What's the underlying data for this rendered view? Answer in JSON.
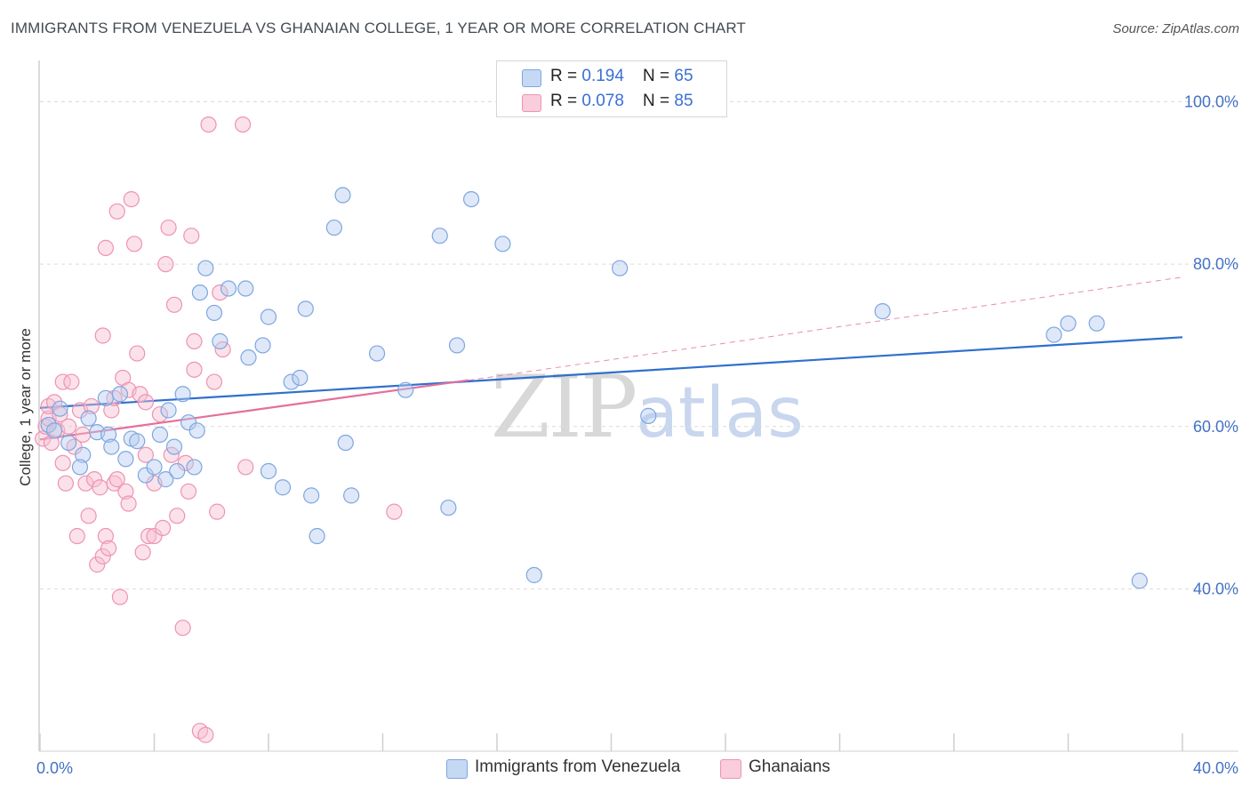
{
  "header": {
    "title": "IMMIGRANTS FROM VENEZUELA VS GHANAIAN COLLEGE, 1 YEAR OR MORE CORRELATION CHART",
    "source": "Source: ZipAtlas.com"
  },
  "legend": {
    "blue": {
      "r_label": "R = ",
      "r_value": "0.194",
      "n_label": "N = ",
      "n_value": "65"
    },
    "pink": {
      "r_label": "R = ",
      "r_value": "0.078",
      "n_label": "N = ",
      "n_value": "85"
    }
  },
  "bottom_legend": {
    "blue_label": "Immigrants from Venezuela",
    "pink_label": "Ghanaians"
  },
  "watermark": {
    "zip": "ZIP",
    "atlas": "atlas"
  },
  "colors": {
    "blue_fill": "#b5cdf0",
    "blue_stroke": "#7ea6e0",
    "blue_line": "#2f6fce",
    "pink_fill": "#f6bfd0",
    "pink_stroke": "#ee93b1",
    "pink_line": "#e46f9a",
    "grid": "#dcdcdc",
    "accent": "#4472c4"
  },
  "chart_data": {
    "type": "scatter",
    "title": "IMMIGRANTS FROM VENEZUELA VS GHANAIAN COLLEGE, 1 YEAR OR MORE CORRELATION CHART",
    "xlabel": "",
    "ylabel": "College, 1 year or more",
    "xlim": [
      0,
      40
    ],
    "ylim": [
      20,
      104
    ],
    "x_tick_labels": [
      {
        "value": 0,
        "label": "0.0%"
      },
      {
        "value": 40,
        "label": "40.0%"
      }
    ],
    "y_tick_labels": [
      {
        "value": 100,
        "label": "100.0%"
      },
      {
        "value": 80,
        "label": "80.0%"
      },
      {
        "value": 60,
        "label": "60.0%"
      },
      {
        "value": 40,
        "label": "40.0%"
      }
    ],
    "grid": true,
    "series": [
      {
        "name": "Immigrants from Venezuela",
        "color": "#7ea6e0",
        "r": 0.194,
        "n": 65,
        "trend": {
          "x": [
            0,
            40
          ],
          "y": [
            62.3,
            71.0
          ],
          "style": "solid"
        },
        "points": [
          [
            0.3,
            60.2
          ],
          [
            0.5,
            59.5
          ],
          [
            0.7,
            62.2
          ],
          [
            1.0,
            58.0
          ],
          [
            1.5,
            56.5
          ],
          [
            1.4,
            55.0
          ],
          [
            1.7,
            61.0
          ],
          [
            2.0,
            59.3
          ],
          [
            2.3,
            63.5
          ],
          [
            2.4,
            59.0
          ],
          [
            2.5,
            57.5
          ],
          [
            2.8,
            64.0
          ],
          [
            3.0,
            56.0
          ],
          [
            3.2,
            58.5
          ],
          [
            3.4,
            58.2
          ],
          [
            3.7,
            54.0
          ],
          [
            4.0,
            55.0
          ],
          [
            4.2,
            59.0
          ],
          [
            4.4,
            53.5
          ],
          [
            4.5,
            62.0
          ],
          [
            4.7,
            57.5
          ],
          [
            4.8,
            54.5
          ],
          [
            5.0,
            64.0
          ],
          [
            5.2,
            60.5
          ],
          [
            5.4,
            55.0
          ],
          [
            5.5,
            59.5
          ],
          [
            5.6,
            76.5
          ],
          [
            5.8,
            79.5
          ],
          [
            6.1,
            74.0
          ],
          [
            6.3,
            70.5
          ],
          [
            6.6,
            77.0
          ],
          [
            7.2,
            77.0
          ],
          [
            7.3,
            68.5
          ],
          [
            7.8,
            70.0
          ],
          [
            8.0,
            73.5
          ],
          [
            8.0,
            54.5
          ],
          [
            8.5,
            52.5
          ],
          [
            8.8,
            65.5
          ],
          [
            9.1,
            66.0
          ],
          [
            9.3,
            74.5
          ],
          [
            9.5,
            51.5
          ],
          [
            9.7,
            46.5
          ],
          [
            10.3,
            84.5
          ],
          [
            10.6,
            88.5
          ],
          [
            10.7,
            58.0
          ],
          [
            10.9,
            51.5
          ],
          [
            11.8,
            69.0
          ],
          [
            12.8,
            64.5
          ],
          [
            14.0,
            83.5
          ],
          [
            14.3,
            50.0
          ],
          [
            14.6,
            70.0
          ],
          [
            15.1,
            88.0
          ],
          [
            16.2,
            82.5
          ],
          [
            17.3,
            41.7
          ],
          [
            20.3,
            79.5
          ],
          [
            21.3,
            61.3
          ],
          [
            29.5,
            74.2
          ],
          [
            35.5,
            71.3
          ],
          [
            36.0,
            72.7
          ],
          [
            37.0,
            72.7
          ],
          [
            38.5,
            41.0
          ]
        ]
      },
      {
        "name": "Ghanaians",
        "color": "#ee93b1",
        "r": 0.078,
        "n": 85,
        "trend": {
          "x": [
            0,
            15
          ],
          "y": [
            58.4,
            65.7
          ],
          "style": "solid",
          "dashed_extension": {
            "x": [
              15,
              40
            ],
            "y": [
              65.7,
              78.4
            ]
          }
        },
        "points": [
          [
            0.1,
            58.5
          ],
          [
            0.2,
            60.0
          ],
          [
            0.3,
            61.0
          ],
          [
            0.3,
            62.5
          ],
          [
            0.4,
            58.0
          ],
          [
            0.5,
            63.0
          ],
          [
            0.6,
            59.5
          ],
          [
            0.7,
            61.5
          ],
          [
            0.8,
            55.5
          ],
          [
            0.8,
            65.5
          ],
          [
            0.9,
            53.0
          ],
          [
            1.0,
            60.0
          ],
          [
            1.1,
            65.5
          ],
          [
            1.2,
            57.5
          ],
          [
            1.3,
            46.5
          ],
          [
            1.4,
            62.0
          ],
          [
            1.5,
            59.0
          ],
          [
            1.6,
            53.0
          ],
          [
            1.7,
            49.0
          ],
          [
            1.8,
            62.5
          ],
          [
            1.9,
            53.5
          ],
          [
            2.0,
            43.0
          ],
          [
            2.1,
            52.5
          ],
          [
            2.2,
            44.0
          ],
          [
            2.2,
            71.2
          ],
          [
            2.3,
            46.5
          ],
          [
            2.3,
            82.0
          ],
          [
            2.4,
            45.0
          ],
          [
            2.5,
            62.0
          ],
          [
            2.6,
            53.0
          ],
          [
            2.6,
            63.5
          ],
          [
            2.7,
            53.5
          ],
          [
            2.7,
            86.5
          ],
          [
            2.8,
            39.0
          ],
          [
            2.9,
            66.0
          ],
          [
            3.0,
            52.0
          ],
          [
            3.1,
            64.5
          ],
          [
            3.1,
            50.5
          ],
          [
            3.2,
            88.0
          ],
          [
            3.3,
            82.5
          ],
          [
            3.4,
            69.0
          ],
          [
            3.5,
            64.0
          ],
          [
            3.6,
            44.5
          ],
          [
            3.7,
            63.0
          ],
          [
            3.7,
            56.5
          ],
          [
            3.8,
            46.5
          ],
          [
            4.0,
            53.0
          ],
          [
            4.0,
            46.5
          ],
          [
            4.2,
            61.5
          ],
          [
            4.3,
            47.5
          ],
          [
            4.4,
            80.0
          ],
          [
            4.5,
            84.5
          ],
          [
            4.6,
            56.5
          ],
          [
            4.7,
            75.0
          ],
          [
            4.8,
            49.0
          ],
          [
            5.0,
            35.2
          ],
          [
            5.1,
            55.5
          ],
          [
            5.2,
            52.0
          ],
          [
            5.3,
            83.5
          ],
          [
            5.4,
            70.5
          ],
          [
            5.4,
            67.0
          ],
          [
            5.6,
            22.5
          ],
          [
            5.8,
            22.0
          ],
          [
            5.9,
            97.2
          ],
          [
            6.1,
            65.5
          ],
          [
            6.2,
            49.5
          ],
          [
            6.3,
            76.5
          ],
          [
            6.4,
            69.5
          ],
          [
            7.1,
            97.2
          ],
          [
            7.2,
            55.0
          ],
          [
            12.4,
            49.5
          ]
        ]
      }
    ]
  }
}
